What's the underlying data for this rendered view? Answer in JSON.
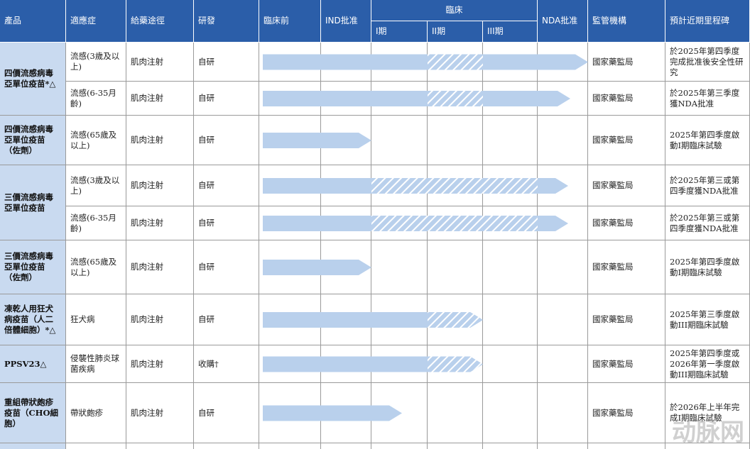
{
  "header": {
    "columns": [
      "產品",
      "適應症",
      "給藥途徑",
      "研發",
      "臨床前",
      "IND批准",
      "臨床",
      "NDA批准",
      "監管機構",
      "預計近期里程碑"
    ],
    "clinical_phases": [
      "I期",
      "II期",
      "III期"
    ]
  },
  "products": [
    {
      "name": "四價流感病毒亞單位疫苗*△",
      "rows": [
        {
          "indication": "流感(3歲及以上)",
          "route": "肌肉注射",
          "development": "自研",
          "regulator": "國家藥監局",
          "milestone": "於2025年第四季度完成批准後安全性研究"
        },
        {
          "indication": "流感(6-35月齡)",
          "route": "肌肉注射",
          "development": "自研",
          "regulator": "國家藥監局",
          "milestone": "於2025年第三季度獲NDA批准"
        }
      ]
    },
    {
      "name": "四價流感病毒亞單位疫苗（佐劑）",
      "rows": [
        {
          "indication": "流感(65歲及以上)",
          "route": "肌肉注射",
          "development": "自研",
          "regulator": "國家藥監局",
          "milestone": "2025年第四季度啟動I期臨床試驗"
        }
      ]
    },
    {
      "name": "三價流感病毒亞單位疫苗",
      "rows": [
        {
          "indication": "流感(3歲及以上)",
          "route": "肌肉注射",
          "development": "自研",
          "regulator": "國家藥監局",
          "milestone": "於2025年第三或第四季度獲NDA批准"
        },
        {
          "indication": "流感(6-35月齡)",
          "route": "肌肉注射",
          "development": "自研",
          "regulator": "國家藥監局",
          "milestone": "於2025年第三或第四季度獲NDA批准"
        }
      ]
    },
    {
      "name": "三價流感病毒亞單位疫苗（佐劑）",
      "rows": [
        {
          "indication": "流感(65歲及以上)",
          "route": "肌肉注射",
          "development": "自研",
          "regulator": "國家藥監局",
          "milestone": "2025年第四季度啟動I期臨床試驗"
        }
      ]
    },
    {
      "name": "凍乾人用狂犬病疫苗（人二倍體細胞）*△",
      "rows": [
        {
          "indication": "狂犬病",
          "route": "肌肉注射",
          "development": "自研",
          "regulator": "國家藥監局",
          "milestone": "2025年第三季度啟動III期臨床試驗"
        }
      ]
    },
    {
      "name": "PPSV23△",
      "rows": [
        {
          "indication": "侵襲性肺炎球菌疾病",
          "route": "肌肉注射",
          "development": "收購†",
          "regulator": "國家藥監局",
          "milestone": "2025年第四季度或2026年第一季度啟動III期臨床試驗"
        }
      ]
    },
    {
      "name": "重組帶狀皰疹疫苗（CHO細胞）",
      "rows": [
        {
          "indication": "帶狀皰疹",
          "route": "肌肉注射",
          "development": "自研",
          "regulator": "國家藥監局",
          "milestone": "於2026年上半年完成I期臨床試驗"
        }
      ]
    }
  ],
  "watermark": "动脉网"
}
